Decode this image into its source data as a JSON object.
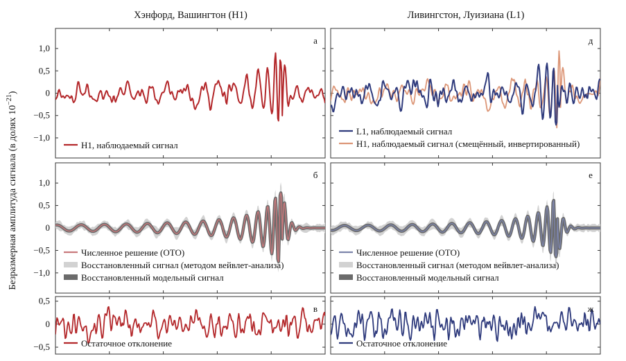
{
  "columns": [
    {
      "title": "Хэнфорд, Вашингтон (H1)"
    },
    {
      "title": "Ливингстон, Луизиана (L1)"
    }
  ],
  "ylabel_main": "Безразмерная амплитуда сигнала (в долях 10",
  "ylabel_exp": "−21",
  "ylabel_close": ")",
  "colors": {
    "h1": "#b3272a",
    "l1": "#2e3a7c",
    "h1_shifted": "#dc9677",
    "nr_h1": "#c8797c",
    "nr_l1": "#7c84aa",
    "wavelet_band": "#d2d2d2",
    "template_band": "#6b6b6b"
  },
  "chart_data": [
    {
      "id": "a",
      "letter": "а",
      "column": 0,
      "type": "line",
      "y_ticks": [
        "1,0",
        "0,5",
        "0",
        "−0,5",
        "−1,0"
      ],
      "y_tick_values": [
        1.0,
        0.5,
        0,
        -0.5,
        -1.0
      ],
      "ylim": [
        -1.45,
        1.45
      ],
      "legend": [
        {
          "label": "H1, наблюдаемый сигнал",
          "kind": "line",
          "color_key": "h1"
        }
      ]
    },
    {
      "id": "d",
      "letter": "д",
      "column": 1,
      "type": "line",
      "y_ticks": [],
      "y_tick_values": [
        1.0,
        0.5,
        0,
        -0.5,
        -1.0
      ],
      "ylim": [
        -1.45,
        1.45
      ],
      "legend": [
        {
          "label": "L1, наблюдаемый сигнал",
          "kind": "line",
          "color_key": "l1"
        },
        {
          "label": "H1, наблюдаемый сигнал (смещённый, инвертированный)",
          "kind": "line",
          "color_key": "h1_shifted"
        }
      ]
    },
    {
      "id": "b",
      "letter": "б",
      "column": 0,
      "type": "line",
      "y_ticks": [
        "1,0",
        "0,5",
        "0",
        "−0,5",
        "−1,0"
      ],
      "y_tick_values": [
        1.0,
        0.5,
        0,
        -0.5,
        -1.0
      ],
      "ylim": [
        -1.45,
        1.45
      ],
      "legend": [
        {
          "label": "Численное решение (ОТО)",
          "kind": "line",
          "color_key": "nr_h1"
        },
        {
          "label": "Восстановленный сигнал (методом вейвлет-анализа)",
          "kind": "band",
          "color_key": "wavelet_band"
        },
        {
          "label": "Восстановленный модельный сигнал",
          "kind": "band",
          "color_key": "template_band"
        }
      ]
    },
    {
      "id": "e",
      "letter": "е",
      "column": 1,
      "type": "line",
      "y_ticks": [],
      "y_tick_values": [
        1.0,
        0.5,
        0,
        -0.5,
        -1.0
      ],
      "ylim": [
        -1.45,
        1.45
      ],
      "legend": [
        {
          "label": "Численное решение (ОТО)",
          "kind": "line",
          "color_key": "nr_l1"
        },
        {
          "label": "Восстановленный сигнал (методом вейвлет-анализа)",
          "kind": "band",
          "color_key": "wavelet_band"
        },
        {
          "label": "Восстановленный модельный сигнал",
          "kind": "band",
          "color_key": "template_band"
        }
      ]
    },
    {
      "id": "v",
      "letter": "в",
      "column": 0,
      "type": "line",
      "y_ticks": [
        "0,5",
        "0",
        "−0,5"
      ],
      "y_tick_values": [
        0.5,
        0,
        -0.5
      ],
      "ylim": [
        -0.65,
        0.6
      ],
      "legend": [
        {
          "label": "Остаточное отклонение",
          "kind": "line",
          "color_key": "h1"
        }
      ]
    },
    {
      "id": "zh",
      "letter": "ж",
      "column": 1,
      "type": "line",
      "y_ticks": [],
      "y_tick_values": [
        0.5,
        0,
        -0.5
      ],
      "ylim": [
        -0.65,
        0.6
      ],
      "legend": [
        {
          "label": "Остаточное отклонение",
          "kind": "line",
          "color_key": "l1"
        }
      ]
    }
  ]
}
